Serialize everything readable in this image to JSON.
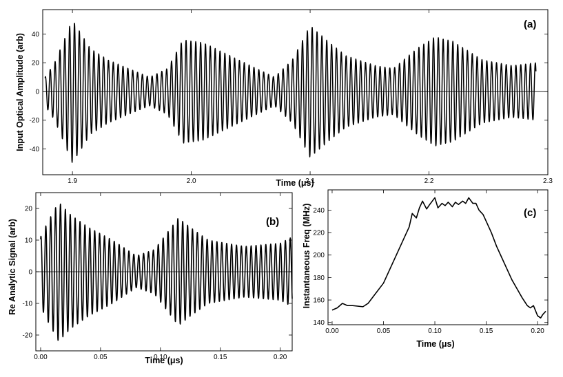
{
  "chart_data": [
    {
      "id": "a",
      "type": "line",
      "panel_tag": "(a)",
      "xlabel": "Time (μs)",
      "ylabel": "Input Optical Amplitude (arb)",
      "xlim": [
        1.875,
        2.3
      ],
      "ylim": [
        -58,
        57
      ],
      "xticks": [
        1.9,
        2.0,
        2.1,
        2.2,
        2.3
      ],
      "xtick_labels": [
        "1.9",
        "2.0",
        "2.1",
        "2.2",
        "2.3"
      ],
      "yticks": [
        -40,
        -20,
        0,
        20,
        40
      ],
      "ytick_labels": [
        "-40",
        "-20",
        "0",
        "20",
        "40"
      ],
      "zero_line": true,
      "signal": {
        "t_start": 1.877,
        "t_end": 2.29,
        "carrier_cycles_per_unit": 245,
        "envelope_points": [
          [
            1.877,
            10
          ],
          [
            1.885,
            20
          ],
          [
            1.9,
            50
          ],
          [
            1.915,
            30
          ],
          [
            1.93,
            22
          ],
          [
            1.95,
            15
          ],
          [
            1.965,
            10
          ],
          [
            1.98,
            16
          ],
          [
            1.993,
            36
          ],
          [
            2.01,
            34
          ],
          [
            2.03,
            26
          ],
          [
            2.05,
            18
          ],
          [
            2.07,
            10
          ],
          [
            2.085,
            22
          ],
          [
            2.1,
            46
          ],
          [
            2.115,
            35
          ],
          [
            2.13,
            25
          ],
          [
            2.155,
            18
          ],
          [
            2.17,
            16
          ],
          [
            2.19,
            30
          ],
          [
            2.205,
            38
          ],
          [
            2.22,
            35
          ],
          [
            2.245,
            22
          ],
          [
            2.27,
            18
          ],
          [
            2.29,
            20
          ]
        ]
      }
    },
    {
      "id": "b",
      "type": "line",
      "panel_tag": "(b)",
      "xlabel": "Time (μs)",
      "ylabel": "Re Analytic Signal (arb)",
      "xlim": [
        -0.004,
        0.21
      ],
      "ylim": [
        -25,
        25
      ],
      "xticks": [
        0.0,
        0.05,
        0.1,
        0.15,
        0.2
      ],
      "xtick_labels": [
        "0.00",
        "0.05",
        "0.10",
        "0.15",
        "0.20"
      ],
      "yticks": [
        -20,
        -10,
        0,
        10,
        20
      ],
      "ytick_labels": [
        "-20",
        "-10",
        "0",
        "10",
        "20"
      ],
      "zero_line": true,
      "signal": {
        "t_start": 0.0,
        "t_end": 0.21,
        "carrier_cycles_per_unit": 245,
        "envelope_points": [
          [
            0.0,
            11
          ],
          [
            0.005,
            15
          ],
          [
            0.015,
            22
          ],
          [
            0.025,
            18
          ],
          [
            0.04,
            14
          ],
          [
            0.06,
            10
          ],
          [
            0.08,
            5
          ],
          [
            0.095,
            7
          ],
          [
            0.105,
            12
          ],
          [
            0.115,
            17
          ],
          [
            0.125,
            14
          ],
          [
            0.14,
            10
          ],
          [
            0.17,
            8
          ],
          [
            0.2,
            9
          ],
          [
            0.21,
            11
          ]
        ]
      }
    },
    {
      "id": "c",
      "type": "line",
      "panel_tag": "(c)",
      "xlabel": "Time (μs)",
      "ylabel": "Instantaneous Freq (MHz)",
      "xlim": [
        -0.004,
        0.21
      ],
      "ylim": [
        138,
        258
      ],
      "xticks": [
        0.0,
        0.05,
        0.1,
        0.15,
        0.2
      ],
      "xtick_labels": [
        "0.00",
        "0.05",
        "0.10",
        "0.15",
        "0.20"
      ],
      "yticks": [
        140,
        160,
        180,
        200,
        220,
        240
      ],
      "ytick_labels": [
        "140",
        "160",
        "180",
        "200",
        "220",
        "240"
      ],
      "zero_line": false,
      "x": [
        0.0,
        0.005,
        0.01,
        0.015,
        0.02,
        0.03,
        0.035,
        0.04,
        0.05,
        0.06,
        0.065,
        0.07,
        0.075,
        0.078,
        0.082,
        0.085,
        0.088,
        0.092,
        0.095,
        0.1,
        0.103,
        0.107,
        0.11,
        0.113,
        0.117,
        0.12,
        0.123,
        0.127,
        0.13,
        0.133,
        0.137,
        0.14,
        0.143,
        0.147,
        0.15,
        0.155,
        0.16,
        0.165,
        0.17,
        0.175,
        0.18,
        0.185,
        0.19,
        0.193,
        0.196,
        0.2,
        0.203,
        0.205,
        0.208
      ],
      "y": [
        151,
        153,
        157,
        155,
        155,
        154,
        157,
        163,
        175,
        195,
        205,
        215,
        225,
        237,
        233,
        242,
        248,
        241,
        245,
        251,
        242,
        246,
        244,
        247,
        243,
        247,
        245,
        248,
        246,
        251,
        246,
        246,
        240,
        236,
        230,
        220,
        208,
        198,
        188,
        178,
        170,
        162,
        155,
        153,
        155,
        146,
        144,
        147,
        150
      ]
    }
  ]
}
